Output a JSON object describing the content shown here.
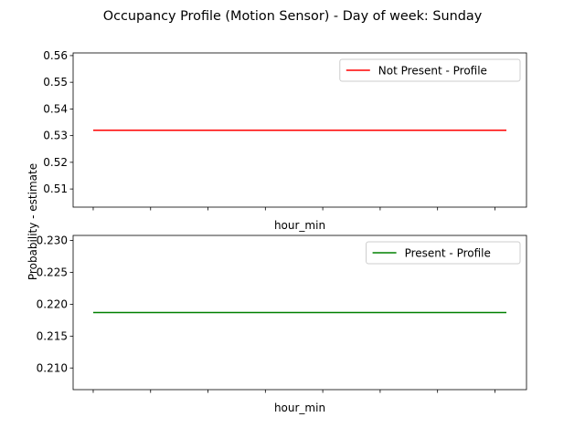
{
  "figure": {
    "title": "Occupancy Profile (Motion Sensor) - Day of week: Sunday",
    "ylabel": "Probability - estimate"
  },
  "chart_data": [
    {
      "type": "line",
      "xlabel": "hour_min",
      "xlim": [
        -0.35,
        7.55
      ],
      "xticks": [
        0,
        1,
        2,
        3,
        4,
        5,
        6,
        7
      ],
      "ylim": [
        0.5032,
        0.561
      ],
      "yticks": [
        0.51,
        0.52,
        0.53,
        0.54,
        0.55,
        0.56
      ],
      "ytick_labels": [
        "0.51",
        "0.52",
        "0.53",
        "0.54",
        "0.55",
        "0.56"
      ],
      "legend_position": "upper right",
      "series": [
        {
          "name": "Not Present - Profile",
          "color": "#ff0000",
          "x": [
            0,
            7.2
          ],
          "y": [
            0.532,
            0.532
          ]
        }
      ]
    },
    {
      "type": "line",
      "xlabel": "hour_min",
      "xlim": [
        -0.35,
        7.55
      ],
      "xticks": [
        0,
        1,
        2,
        3,
        4,
        5,
        6,
        7
      ],
      "ylim": [
        0.2066,
        0.2308
      ],
      "yticks": [
        0.21,
        0.215,
        0.22,
        0.225,
        0.23
      ],
      "ytick_labels": [
        "0.210",
        "0.215",
        "0.220",
        "0.225",
        "0.230"
      ],
      "legend_position": "upper right",
      "series": [
        {
          "name": "Present - Profile",
          "color": "#008000",
          "x": [
            0,
            7.2
          ],
          "y": [
            0.2187,
            0.2187
          ]
        }
      ]
    }
  ]
}
